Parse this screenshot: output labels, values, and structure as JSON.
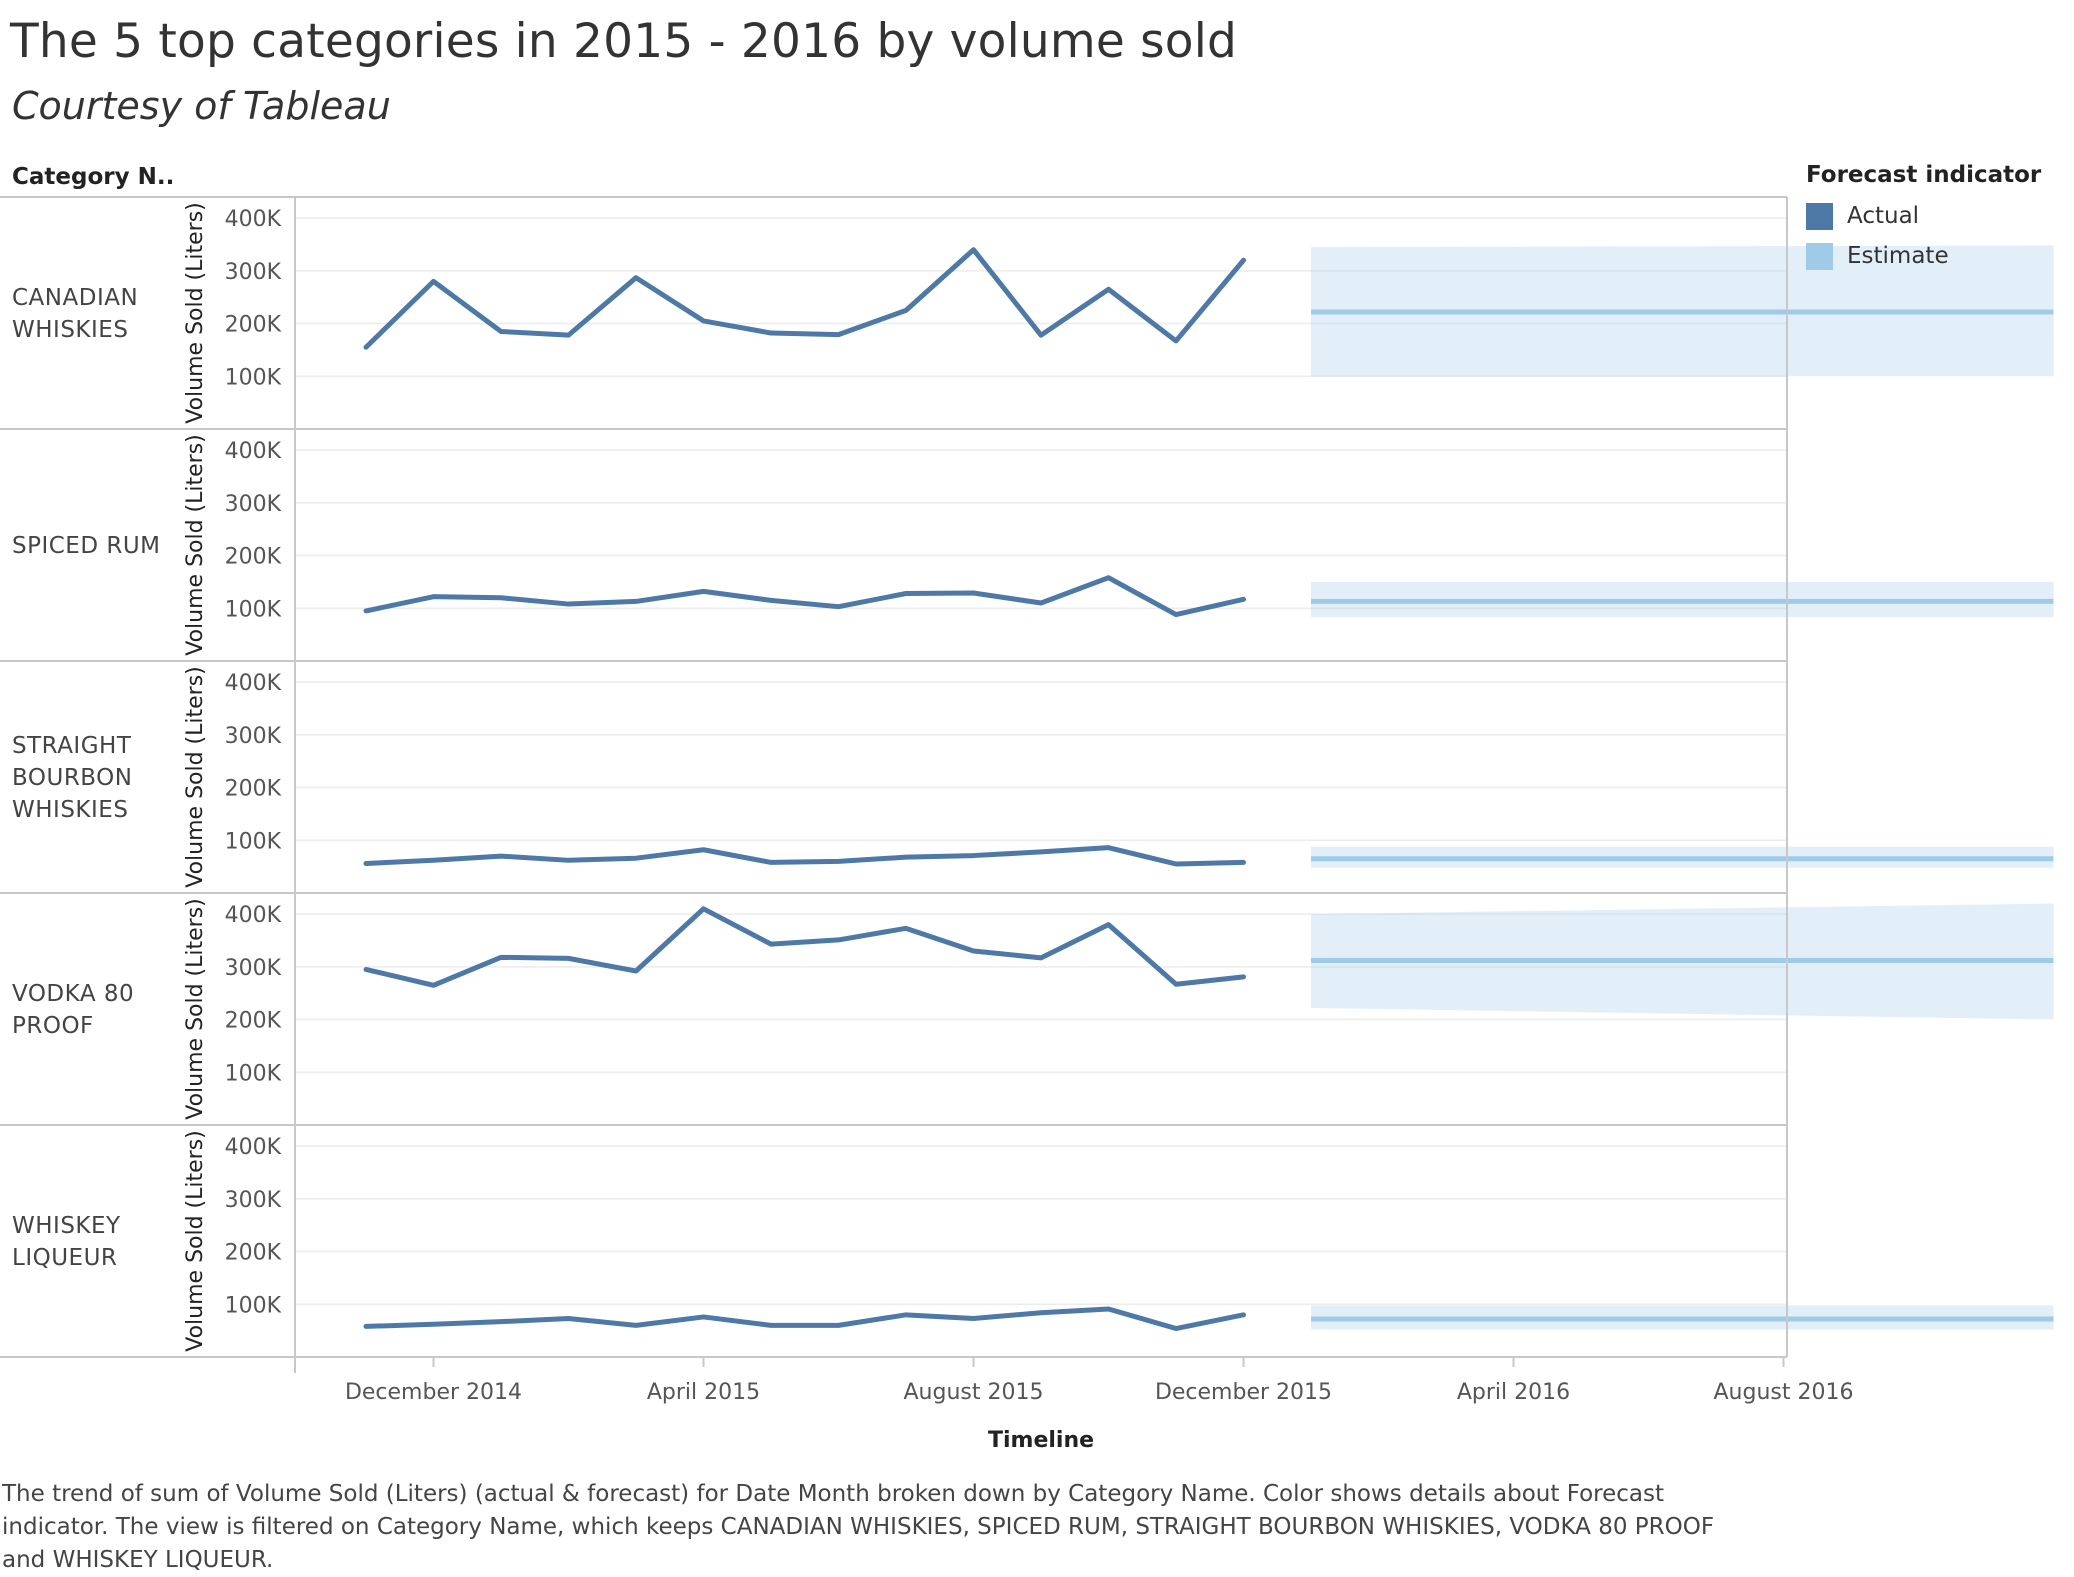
{
  "title": "The 5 top categories in 2015 - 2016 by volume sold",
  "subtitle": "Courtesy of Tableau",
  "row_header": "Category N..",
  "legend": {
    "title": "Forecast indicator",
    "items": [
      {
        "label": "Actual",
        "color": "#4e79a7"
      },
      {
        "label": "Estimate",
        "color": "#a0cbe8"
      }
    ]
  },
  "footer": "The trend of sum of Volume Sold (Liters) (actual & forecast)  for Date Month broken down by Category Name.  Color shows details about Forecast indicator.  The view is filtered on Category Name, which keeps CANADIAN WHISKIES, SPICED RUM, STRAIGHT BOURBON WHISKIES, VODKA 80 PROOF and WHISKEY LIQUEUR.",
  "chart_data": {
    "type": "line",
    "xlabel": "Timeline",
    "ylabel": "Volume Sold (Liters)",
    "x_ticks": [
      "December 2014",
      "April 2015",
      "August 2015",
      "December 2015",
      "April 2016",
      "August 2016"
    ],
    "y_ticks": [
      "100K",
      "200K",
      "300K",
      "400K"
    ],
    "ylim": [
      0,
      440000
    ],
    "grid": true,
    "legend_position": "top-right",
    "actual_months": [
      "2014-11",
      "2014-12",
      "2015-01",
      "2015-02",
      "2015-03",
      "2015-04",
      "2015-05",
      "2015-06",
      "2015-07",
      "2015-08",
      "2015-09",
      "2015-10",
      "2015-11",
      "2015-12"
    ],
    "forecast_months": [
      "2016-01",
      "2016-02",
      "2016-03",
      "2016-04",
      "2016-05",
      "2016-06",
      "2016-07",
      "2016-08",
      "2016-09",
      "2016-10",
      "2016-11",
      "2016-12"
    ],
    "panels": [
      {
        "category": "CANADIAN WHISKIES",
        "actual": [
          155000,
          280000,
          185000,
          178000,
          287000,
          205000,
          182000,
          179000,
          225000,
          340000,
          178000,
          265000,
          167000,
          320000
        ],
        "estimate": 222000,
        "band_start": [
          100000,
          345000
        ],
        "band_end": [
          100000,
          348000
        ]
      },
      {
        "category": "SPICED RUM",
        "actual": [
          95000,
          122000,
          120000,
          108000,
          113000,
          132000,
          115000,
          103000,
          128000,
          129000,
          110000,
          158000,
          88000,
          117000
        ],
        "estimate": 113000,
        "band_start": [
          83000,
          150000
        ],
        "band_end": [
          83000,
          150000
        ]
      },
      {
        "category": "STRAIGHT BOURBON WHISKIES",
        "actual": [
          56000,
          62000,
          70000,
          62000,
          66000,
          82000,
          58000,
          60000,
          68000,
          71000,
          78000,
          86000,
          55000,
          58000
        ],
        "estimate": 65000,
        "band_start": [
          48000,
          88000
        ],
        "band_end": [
          48000,
          88000
        ]
      },
      {
        "category": "VODKA 80 PROOF",
        "actual": [
          295000,
          265000,
          318000,
          316000,
          292000,
          410000,
          343000,
          351000,
          373000,
          330000,
          317000,
          380000,
          267000,
          281000
        ],
        "estimate": 312000,
        "band_start": [
          222000,
          400000
        ],
        "band_end": [
          200000,
          420000
        ]
      },
      {
        "category": "WHISKEY LIQUEUR",
        "actual": [
          58000,
          62000,
          67000,
          73000,
          60000,
          76000,
          60000,
          60000,
          80000,
          73000,
          84000,
          91000,
          54000,
          80000
        ],
        "estimate": 72000,
        "band_start": [
          52000,
          98000
        ],
        "band_end": [
          52000,
          98000
        ]
      }
    ]
  }
}
